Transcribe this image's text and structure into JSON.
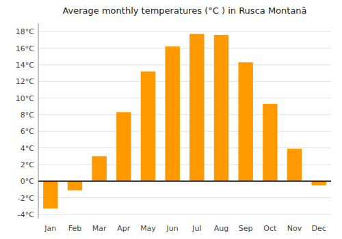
{
  "chart_data": {
    "type": "bar",
    "title": "Average monthly temperatures (°C ) in Rusca Montană",
    "categories": [
      "Jan",
      "Feb",
      "Mar",
      "Apr",
      "May",
      "Jun",
      "Jul",
      "Aug",
      "Sep",
      "Oct",
      "Nov",
      "Dec"
    ],
    "values": [
      -3.3,
      -1.1,
      3.0,
      8.3,
      13.2,
      16.2,
      17.7,
      17.6,
      14.3,
      9.3,
      3.9,
      -0.5
    ],
    "color": "#FF9900",
    "ylim": [
      -4.5,
      19.0
    ],
    "yticks": [
      {
        "value": -4,
        "label": "-4°C"
      },
      {
        "value": -2,
        "label": "-2°C"
      },
      {
        "value": 0,
        "label": "0°C"
      },
      {
        "value": 2,
        "label": "2°C"
      },
      {
        "value": 4,
        "label": "4°C"
      },
      {
        "value": 6,
        "label": "6°C"
      },
      {
        "value": 8,
        "label": "8°C"
      },
      {
        "value": 10,
        "label": "10°C"
      },
      {
        "value": 12,
        "label": "12°C"
      },
      {
        "value": 14,
        "label": "14°C"
      },
      {
        "value": 16,
        "label": "16°C"
      },
      {
        "value": 18,
        "label": "18°C"
      }
    ],
    "grid": true
  }
}
